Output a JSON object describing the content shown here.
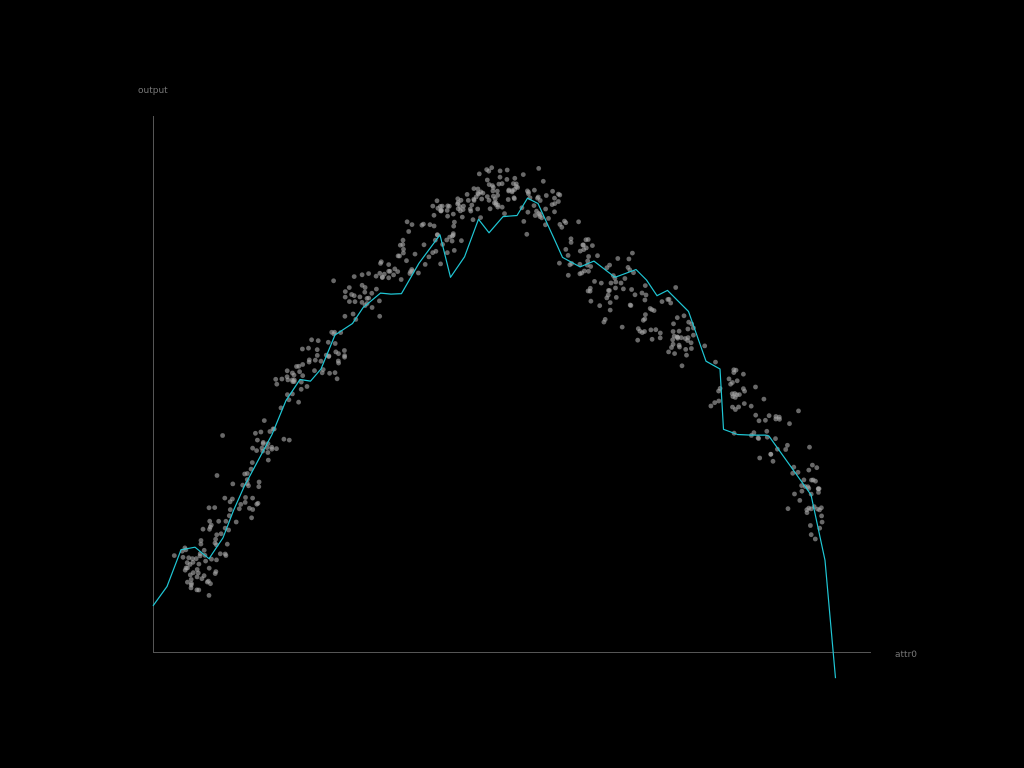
{
  "chart_data": {
    "type": "scatter",
    "xlabel": "attr0",
    "ylabel": "output",
    "xlim": [
      0,
      1
    ],
    "ylim": [
      0,
      1
    ],
    "grid": false,
    "legend": "none",
    "colors": {
      "background": "#000000",
      "points": "#a8a8a8",
      "fit_line": "#1fc6d4",
      "axes": "#555555",
      "labels": "#7a7a7a"
    },
    "point_clusters": [
      {
        "x": 0.05,
        "y": 0.17,
        "n": 22,
        "spread_x": 0.014,
        "spread_y": 0.028
      },
      {
        "x": 0.075,
        "y": 0.15,
        "n": 24,
        "spread_x": 0.014,
        "spread_y": 0.026
      },
      {
        "x": 0.1,
        "y": 0.235,
        "n": 22,
        "spread_x": 0.015,
        "spread_y": 0.03
      },
      {
        "x": 0.13,
        "y": 0.305,
        "n": 24,
        "spread_x": 0.015,
        "spread_y": 0.028
      },
      {
        "x": 0.16,
        "y": 0.4,
        "n": 24,
        "spread_x": 0.015,
        "spread_y": 0.028
      },
      {
        "x": 0.2,
        "y": 0.515,
        "n": 26,
        "spread_x": 0.016,
        "spread_y": 0.028
      },
      {
        "x": 0.25,
        "y": 0.57,
        "n": 30,
        "spread_x": 0.017,
        "spread_y": 0.028
      },
      {
        "x": 0.3,
        "y": 0.68,
        "n": 30,
        "spread_x": 0.017,
        "spread_y": 0.028
      },
      {
        "x": 0.35,
        "y": 0.735,
        "n": 28,
        "spread_x": 0.017,
        "spread_y": 0.028
      },
      {
        "x": 0.4,
        "y": 0.79,
        "n": 30,
        "spread_x": 0.017,
        "spread_y": 0.026
      },
      {
        "x": 0.44,
        "y": 0.85,
        "n": 30,
        "spread_x": 0.016,
        "spread_y": 0.024
      },
      {
        "x": 0.48,
        "y": 0.88,
        "n": 32,
        "spread_x": 0.016,
        "spread_y": 0.022
      },
      {
        "x": 0.52,
        "y": 0.88,
        "n": 30,
        "spread_x": 0.016,
        "spread_y": 0.022
      },
      {
        "x": 0.56,
        "y": 0.84,
        "n": 28,
        "spread_x": 0.016,
        "spread_y": 0.024
      },
      {
        "x": 0.61,
        "y": 0.75,
        "n": 30,
        "spread_x": 0.017,
        "spread_y": 0.028
      },
      {
        "x": 0.66,
        "y": 0.7,
        "n": 30,
        "spread_x": 0.017,
        "spread_y": 0.028
      },
      {
        "x": 0.71,
        "y": 0.64,
        "n": 30,
        "spread_x": 0.017,
        "spread_y": 0.028
      },
      {
        "x": 0.76,
        "y": 0.59,
        "n": 30,
        "spread_x": 0.016,
        "spread_y": 0.026
      },
      {
        "x": 0.83,
        "y": 0.5,
        "n": 28,
        "spread_x": 0.016,
        "spread_y": 0.03
      },
      {
        "x": 0.88,
        "y": 0.42,
        "n": 26,
        "spread_x": 0.014,
        "spread_y": 0.03
      },
      {
        "x": 0.93,
        "y": 0.33,
        "n": 20,
        "spread_x": 0.011,
        "spread_y": 0.03
      },
      {
        "x": 0.945,
        "y": 0.27,
        "n": 18,
        "spread_x": 0.007,
        "spread_y": 0.028
      }
    ],
    "fit_line": {
      "x": [
        0.0,
        0.02,
        0.04,
        0.06,
        0.08,
        0.1,
        0.115,
        0.13,
        0.15,
        0.17,
        0.19,
        0.21,
        0.225,
        0.24,
        0.26,
        0.285,
        0.3,
        0.325,
        0.34,
        0.355,
        0.38,
        0.41,
        0.425,
        0.445,
        0.465,
        0.48,
        0.5,
        0.52,
        0.535,
        0.55,
        0.575,
        0.585,
        0.61,
        0.63,
        0.66,
        0.69,
        0.705,
        0.72,
        0.735,
        0.765,
        0.79,
        0.81,
        0.815,
        0.835,
        0.855,
        0.875,
        0.88,
        0.94,
        0.96,
        0.975
      ],
      "y": [
        0.088,
        0.125,
        0.195,
        0.2,
        0.178,
        0.218,
        0.27,
        0.315,
        0.365,
        0.415,
        0.48,
        0.52,
        0.517,
        0.54,
        0.605,
        0.627,
        0.657,
        0.685,
        0.683,
        0.684,
        0.742,
        0.796,
        0.715,
        0.754,
        0.826,
        0.8,
        0.831,
        0.833,
        0.866,
        0.856,
        0.783,
        0.753,
        0.735,
        0.746,
        0.715,
        0.73,
        0.71,
        0.68,
        0.69,
        0.65,
        0.555,
        0.54,
        0.425,
        0.415,
        0.414,
        0.414,
        0.412,
        0.3,
        0.175,
        -0.05
      ]
    }
  }
}
